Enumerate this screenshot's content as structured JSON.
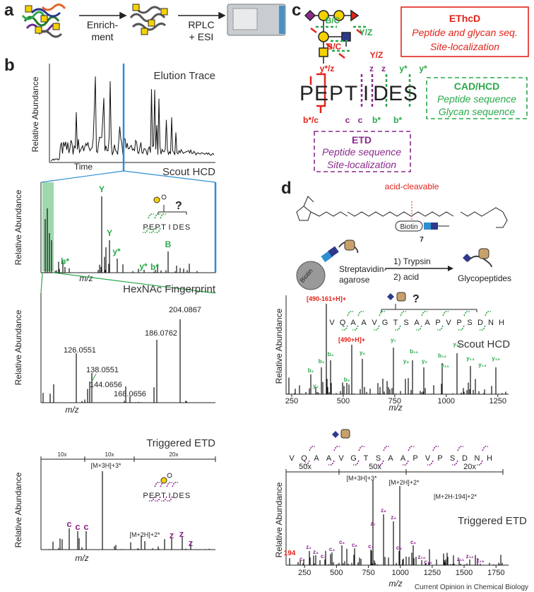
{
  "panel_a": {
    "label": "a",
    "step1": [
      "Enrich-",
      "ment"
    ],
    "step2": [
      "RPLC",
      "+ ESI"
    ]
  },
  "panel_b": {
    "label": "b",
    "elution": {
      "title": "Elution Trace",
      "y_label": "Relative Abundance",
      "x_label": "Time"
    },
    "scout": {
      "title": "Scout HCD",
      "y_label": "Relative Abundance",
      "x_label": "m/z",
      "peaks": [
        "Y",
        "Y",
        "B",
        "b*",
        "y*",
        "y*",
        "b*"
      ],
      "query": "?",
      "peptide": [
        "P",
        "E",
        "P",
        "T",
        "I",
        "D",
        "E",
        "S"
      ]
    },
    "fingerprint": {
      "title": "HexNAc Fingerprint",
      "y_label": "Relative Abundance",
      "x_label": "m/z",
      "peaks": [
        "204.0867",
        "186.0762",
        "126.0551",
        "138.0551",
        "144.0656",
        "168.0656"
      ]
    },
    "etd": {
      "title": "Triggered ETD",
      "y_label": "Relative Abundance",
      "x_label": "m/z",
      "zoom": [
        "10x",
        "10x",
        "20x"
      ],
      "precursors": [
        "[M+3H]+3*",
        "[M+2H]+2*"
      ],
      "peaks": [
        "c",
        "c",
        "c",
        "z",
        "z",
        "z"
      ],
      "peptide": [
        "P",
        "E",
        "P",
        "T",
        "I",
        "D",
        "E",
        "S"
      ]
    }
  },
  "panel_c": {
    "label": "c",
    "glycan_ions": [
      "B/C",
      "Y/Z",
      "B/C",
      "Y/Z"
    ],
    "upper_ions": [
      "y*/z",
      "z",
      "z",
      "y*",
      "y*"
    ],
    "peptide": [
      "P",
      "E",
      "P",
      "T",
      "I",
      "D",
      "E",
      "S"
    ],
    "lower_ions": [
      "b*/c",
      "c",
      "c",
      "b*",
      "b*"
    ],
    "ethcd": {
      "title": "EThcD",
      "lines": [
        "Peptide and glycan seq.",
        "Site-localization"
      ]
    },
    "cad": {
      "title": "CAD/HCD",
      "lines": [
        "Peptide sequence",
        "Glycan sequence"
      ]
    },
    "etd": {
      "title": "ETD",
      "lines": [
        "Peptide sequence",
        "Site-localization"
      ]
    }
  },
  "panel_d": {
    "label": "d",
    "cleavable": "acid-cleavable",
    "reagent": "Biotin",
    "compound": "7",
    "bead": "Biotin",
    "support": [
      "Streptavidin-",
      "agarose"
    ],
    "steps": [
      "1) Trypsin",
      "2) acid"
    ],
    "product": "Glycopeptides",
    "scout": {
      "title": "Scout HCD",
      "y_label": "Relative Abundance",
      "x_label": "m/z",
      "oxonium": "[490-161+H]+",
      "precursor": "[490+H]+",
      "query": "?",
      "sequence": [
        "V",
        "Q",
        "A",
        "A",
        "V",
        "G",
        "T",
        "S",
        "A",
        "A",
        "P",
        "V",
        "P",
        "S",
        "D",
        "N",
        "H"
      ],
      "ions": [
        "b₂",
        "y₂",
        "b₃",
        "b₄",
        "b₅",
        "y₅",
        "y₇",
        "y₈",
        "b₁₀",
        "y₉",
        "b₁₂",
        "y₁₀",
        "y₁₂",
        "y₁₃",
        "y₁₄",
        "y₁₅"
      ],
      "xticks": [
        250,
        500,
        750,
        1000,
        1250
      ]
    },
    "etd": {
      "title": "Triggered ETD",
      "y_label": "Relative Abundance",
      "x_label": "m/z",
      "sequence": [
        "V",
        "Q",
        "A",
        "A",
        "V",
        "G",
        "T",
        "S",
        "A",
        "A",
        "P",
        "V",
        "P",
        "S",
        "D",
        "N",
        "H"
      ],
      "zoom": [
        "50x",
        "50x",
        "20x"
      ],
      "precursors": [
        "[M+3H]+3*",
        "[M+2H]+2*",
        "[M+2H-194]+2*"
      ],
      "marker": "194",
      "ions": [
        "c₂",
        "z₂",
        "z₃",
        "c₃",
        "c₄",
        "c₅",
        "c₆",
        "c₇",
        "z₇",
        "z₈",
        "z₉",
        "c₈",
        "c₉",
        "z₁₀",
        "c₁₀",
        "z₁₁",
        "z₁₂",
        "z₁₃"
      ],
      "xticks": [
        250,
        500,
        750,
        1000,
        1250,
        1500,
        1750
      ]
    }
  },
  "footer": "Current Opinion in Chemical Biology"
}
